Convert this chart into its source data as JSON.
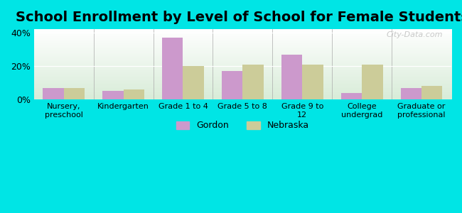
{
  "title": "School Enrollment by Level of School for Female Students",
  "categories": [
    "Nursery,\npreschool",
    "Kindergarten",
    "Grade 1 to 4",
    "Grade 5 to 8",
    "Grade 9 to\n12",
    "College\nundergrad",
    "Graduate or\nprofessional"
  ],
  "gordon": [
    7.0,
    5.0,
    37.0,
    17.0,
    27.0,
    4.0,
    7.0
  ],
  "nebraska": [
    7.0,
    6.0,
    20.0,
    21.0,
    21.0,
    21.0,
    8.0
  ],
  "gordon_color": "#cc99cc",
  "nebraska_color": "#cccc99",
  "background_outer": "#00e5e5",
  "background_inner_top": "#ffffff",
  "background_inner_bottom": "#d8ecd8",
  "ylim": [
    0,
    42
  ],
  "yticks": [
    0,
    20,
    40
  ],
  "ytick_labels": [
    "0%",
    "20%",
    "40%"
  ],
  "title_fontsize": 14,
  "legend_gordon": "Gordon",
  "legend_nebraska": "Nebraska",
  "watermark": "City-Data.com"
}
